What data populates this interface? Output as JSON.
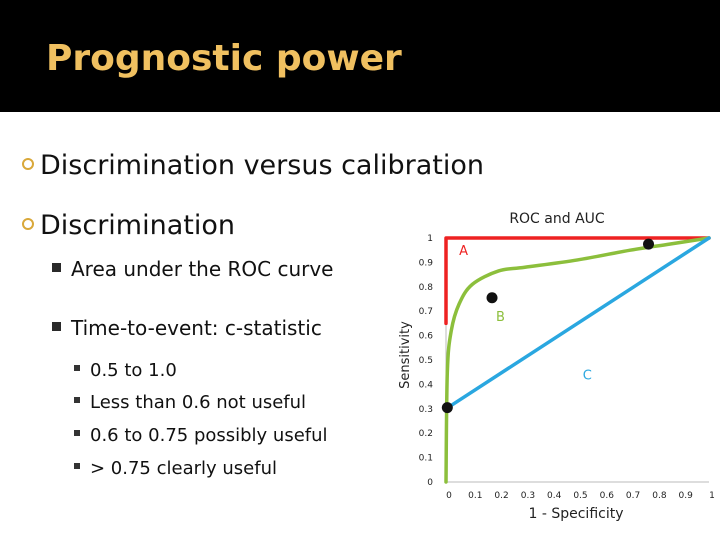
{
  "slide": {
    "title": "Prognostic power",
    "bullets": [
      {
        "level": 1,
        "text": "Discrimination versus calibration"
      },
      {
        "level": 1,
        "text": "Discrimination"
      },
      {
        "level": 2,
        "text": "Area under the ROC curve"
      },
      {
        "level": 2,
        "text": "Time-to-event: c-statistic"
      },
      {
        "level": 3,
        "text": "0.5 to 1.0"
      },
      {
        "level": 3,
        "text": "Less than 0.6 not useful"
      },
      {
        "level": 3,
        "text": "0.6 to 0.75 possibly useful"
      },
      {
        "level": 3,
        "text": "> 0.75 clearly useful"
      }
    ],
    "colors": {
      "title": "#f0c060",
      "header_bg": "#000000",
      "bullet_ring": "#d9a83a"
    }
  },
  "chart_data": {
    "type": "line",
    "title": "ROC and AUC",
    "xlabel": "1 - Specificity",
    "ylabel": "Sensitivity",
    "xlim": [
      0,
      1
    ],
    "ylim": [
      0,
      1
    ],
    "x_ticks": [
      "0",
      "0.1",
      "0.2",
      "0.3",
      "0.4",
      "0.5",
      "0.6",
      "0.7",
      "0.8",
      "0.9",
      "1"
    ],
    "y_ticks": [
      "0",
      "0.1",
      "0.2",
      "0.3",
      "0.4",
      "0.5",
      "0.6",
      "0.7",
      "0.8",
      "0.9",
      "1"
    ],
    "grid": false,
    "series": [
      {
        "color": "#ee2222",
        "x": [
          0,
          0,
          1
        ],
        "y": [
          0.65,
          1,
          1
        ]
      },
      {
        "color": "#8cbf3c",
        "x": [
          0,
          0.005,
          0.02,
          0.05,
          0.1,
          0.2,
          0.3,
          0.5,
          0.7,
          0.85,
          1
        ],
        "y": [
          0,
          0.45,
          0.62,
          0.73,
          0.81,
          0.865,
          0.88,
          0.91,
          0.95,
          0.975,
          1
        ]
      },
      {
        "color": "#2aa7e0",
        "x": [
          0,
          1
        ],
        "y": [
          0.3,
          1
        ]
      }
    ],
    "points": [
      {
        "x": 0.77,
        "y": 0.975
      },
      {
        "x": 0.175,
        "y": 0.755
      },
      {
        "x": 0.005,
        "y": 0.305
      }
    ],
    "annotations": [
      {
        "text": "A",
        "x": 0.05,
        "y": 0.93,
        "color": "#ee2222"
      },
      {
        "text": "B",
        "x": 0.19,
        "y": 0.66,
        "color": "#8cbf3c"
      },
      {
        "text": "C",
        "x": 0.52,
        "y": 0.42,
        "color": "#2aa7e0"
      }
    ],
    "colors": {
      "axis": "#bbbbbb",
      "tick_text": "#222222"
    }
  }
}
